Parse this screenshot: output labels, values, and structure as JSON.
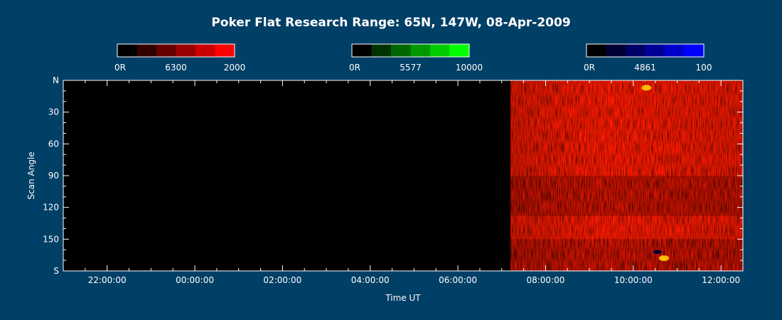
{
  "page": {
    "background": "#003f66",
    "text_color": "#ffffff"
  },
  "chart_data": {
    "type": "heatmap",
    "title": "Poker Flat Research Range: 65N, 147W, 08-Apr-2009",
    "xlabel": "Time UT",
    "ylabel": "Scan Angle",
    "x_ticks": [
      "22:00:00",
      "00:00:00",
      "02:00:00",
      "04:00:00",
      "06:00:00",
      "08:00:00",
      "10:00:00",
      "12:00:00"
    ],
    "x_range_hours": [
      -3.0,
      12.5
    ],
    "x_tick_hours": [
      -2,
      0,
      2,
      4,
      6,
      8,
      10,
      12
    ],
    "y_ticks": [
      "N",
      "30",
      "60",
      "90",
      "120",
      "150",
      "S"
    ],
    "y_tick_values": [
      0,
      30,
      60,
      90,
      120,
      150,
      180
    ],
    "y_range": [
      0,
      180
    ],
    "y_inverted": true,
    "data_start_hours": 7.2,
    "data_coverage": "red channel (6300) only; black (no data) before ~07:12 UT",
    "colorbars": [
      {
        "name": "6300",
        "min_label": "0R",
        "max_label": "2000",
        "max_value": 2000,
        "unit": "R",
        "colors": [
          "#000000",
          "#330000",
          "#660000",
          "#990000",
          "#cc0000",
          "#ff0000"
        ]
      },
      {
        "name": "5577",
        "min_label": "0R",
        "max_label": "10000",
        "max_value": 10000,
        "unit": "R",
        "colors": [
          "#000000",
          "#003300",
          "#006600",
          "#009900",
          "#00cc00",
          "#00ff00"
        ]
      },
      {
        "name": "4861",
        "min_label": "0R",
        "max_label": "100",
        "max_value": 100,
        "unit": "R",
        "colors": [
          "#000000",
          "#000033",
          "#000066",
          "#000099",
          "#0000cc",
          "#0000ff"
        ]
      }
    ],
    "features": [
      {
        "kind": "dark band",
        "y_from": 90,
        "y_to": 128
      },
      {
        "kind": "dark band",
        "y_from": 150,
        "y_to": 180
      },
      {
        "kind": "bright spot",
        "color": "#ffcc00",
        "x_hours": 10.3,
        "y": 7
      },
      {
        "kind": "bright spot",
        "color": "#ffd000",
        "x_hours": 10.7,
        "y": 168
      },
      {
        "kind": "dark spot",
        "color": "#000033",
        "x_hours": 10.55,
        "y": 162
      }
    ]
  }
}
